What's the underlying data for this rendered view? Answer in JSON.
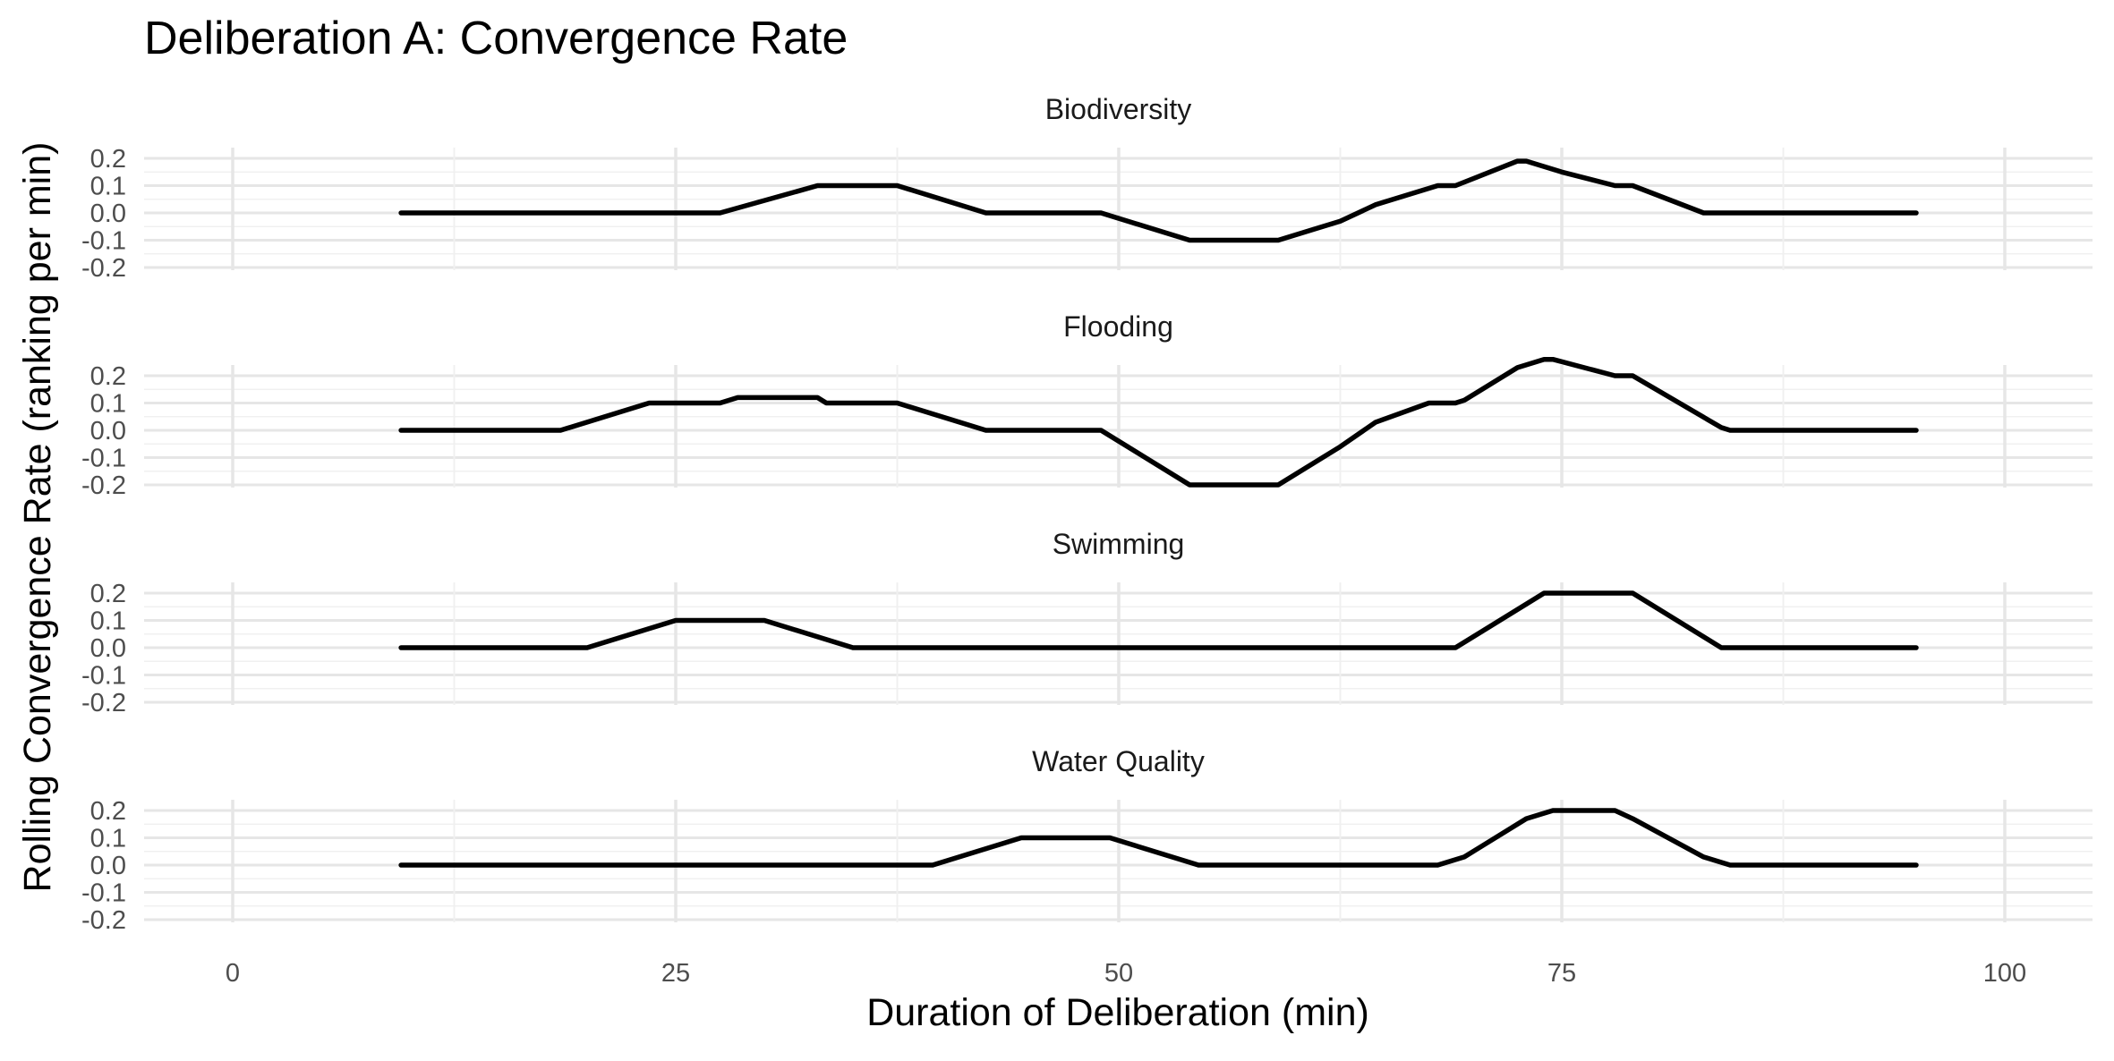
{
  "chart_data": {
    "type": "line",
    "title": "Deliberation A: Convergence Rate",
    "xlabel": "Duration of Deliberation (min)",
    "ylabel": "Rolling Convergence Rate (ranking per min)",
    "xlim": [
      -5,
      105
    ],
    "ylim": [
      -0.2,
      0.2
    ],
    "x_ticks": [
      "0",
      "25",
      "50",
      "75",
      "100"
    ],
    "y_ticks": [
      "-0.2",
      "-0.1",
      "0.0",
      "0.1",
      "0.2"
    ],
    "grid": true,
    "panels": [
      {
        "name": "Biodiversity",
        "x": [
          9.5,
          27.5,
          33,
          37.5,
          42.5,
          49,
          54,
          59,
          62.5,
          64.5,
          68,
          69,
          72.5,
          73,
          75,
          78,
          79,
          83,
          95
        ],
        "y": [
          0,
          0,
          0.1,
          0.1,
          0,
          0,
          -0.1,
          -0.1,
          -0.03,
          0.03,
          0.1,
          0.1,
          0.19,
          0.19,
          0.15,
          0.1,
          0.1,
          0,
          0
        ]
      },
      {
        "name": "Flooding",
        "x": [
          9.5,
          18.5,
          23.5,
          27.5,
          28.5,
          33,
          33.5,
          37.5,
          42.5,
          49,
          54,
          59,
          62.5,
          64.5,
          67.5,
          69,
          69.5,
          72.5,
          74,
          74.5,
          78,
          79,
          84,
          84.5,
          95
        ],
        "y": [
          0,
          0,
          0.1,
          0.1,
          0.12,
          0.12,
          0.1,
          0.1,
          0,
          0,
          -0.2,
          -0.2,
          -0.06,
          0.03,
          0.1,
          0.1,
          0.11,
          0.23,
          0.26,
          0.26,
          0.2,
          0.2,
          0.01,
          0,
          0
        ]
      },
      {
        "name": "Swimming",
        "x": [
          9.5,
          20,
          25,
          30,
          35,
          69,
          74,
          79,
          84,
          95
        ],
        "y": [
          0,
          0,
          0.1,
          0.1,
          0,
          0,
          0.2,
          0.2,
          0,
          0
        ]
      },
      {
        "name": "Water Quality",
        "x": [
          9.5,
          39.5,
          44.5,
          49.5,
          54.5,
          68,
          69.5,
          73,
          74.5,
          78,
          79,
          83,
          84.5,
          95
        ],
        "y": [
          0,
          0,
          0.1,
          0.1,
          0,
          0,
          0.03,
          0.17,
          0.2,
          0.2,
          0.17,
          0.03,
          0,
          0
        ]
      }
    ]
  }
}
